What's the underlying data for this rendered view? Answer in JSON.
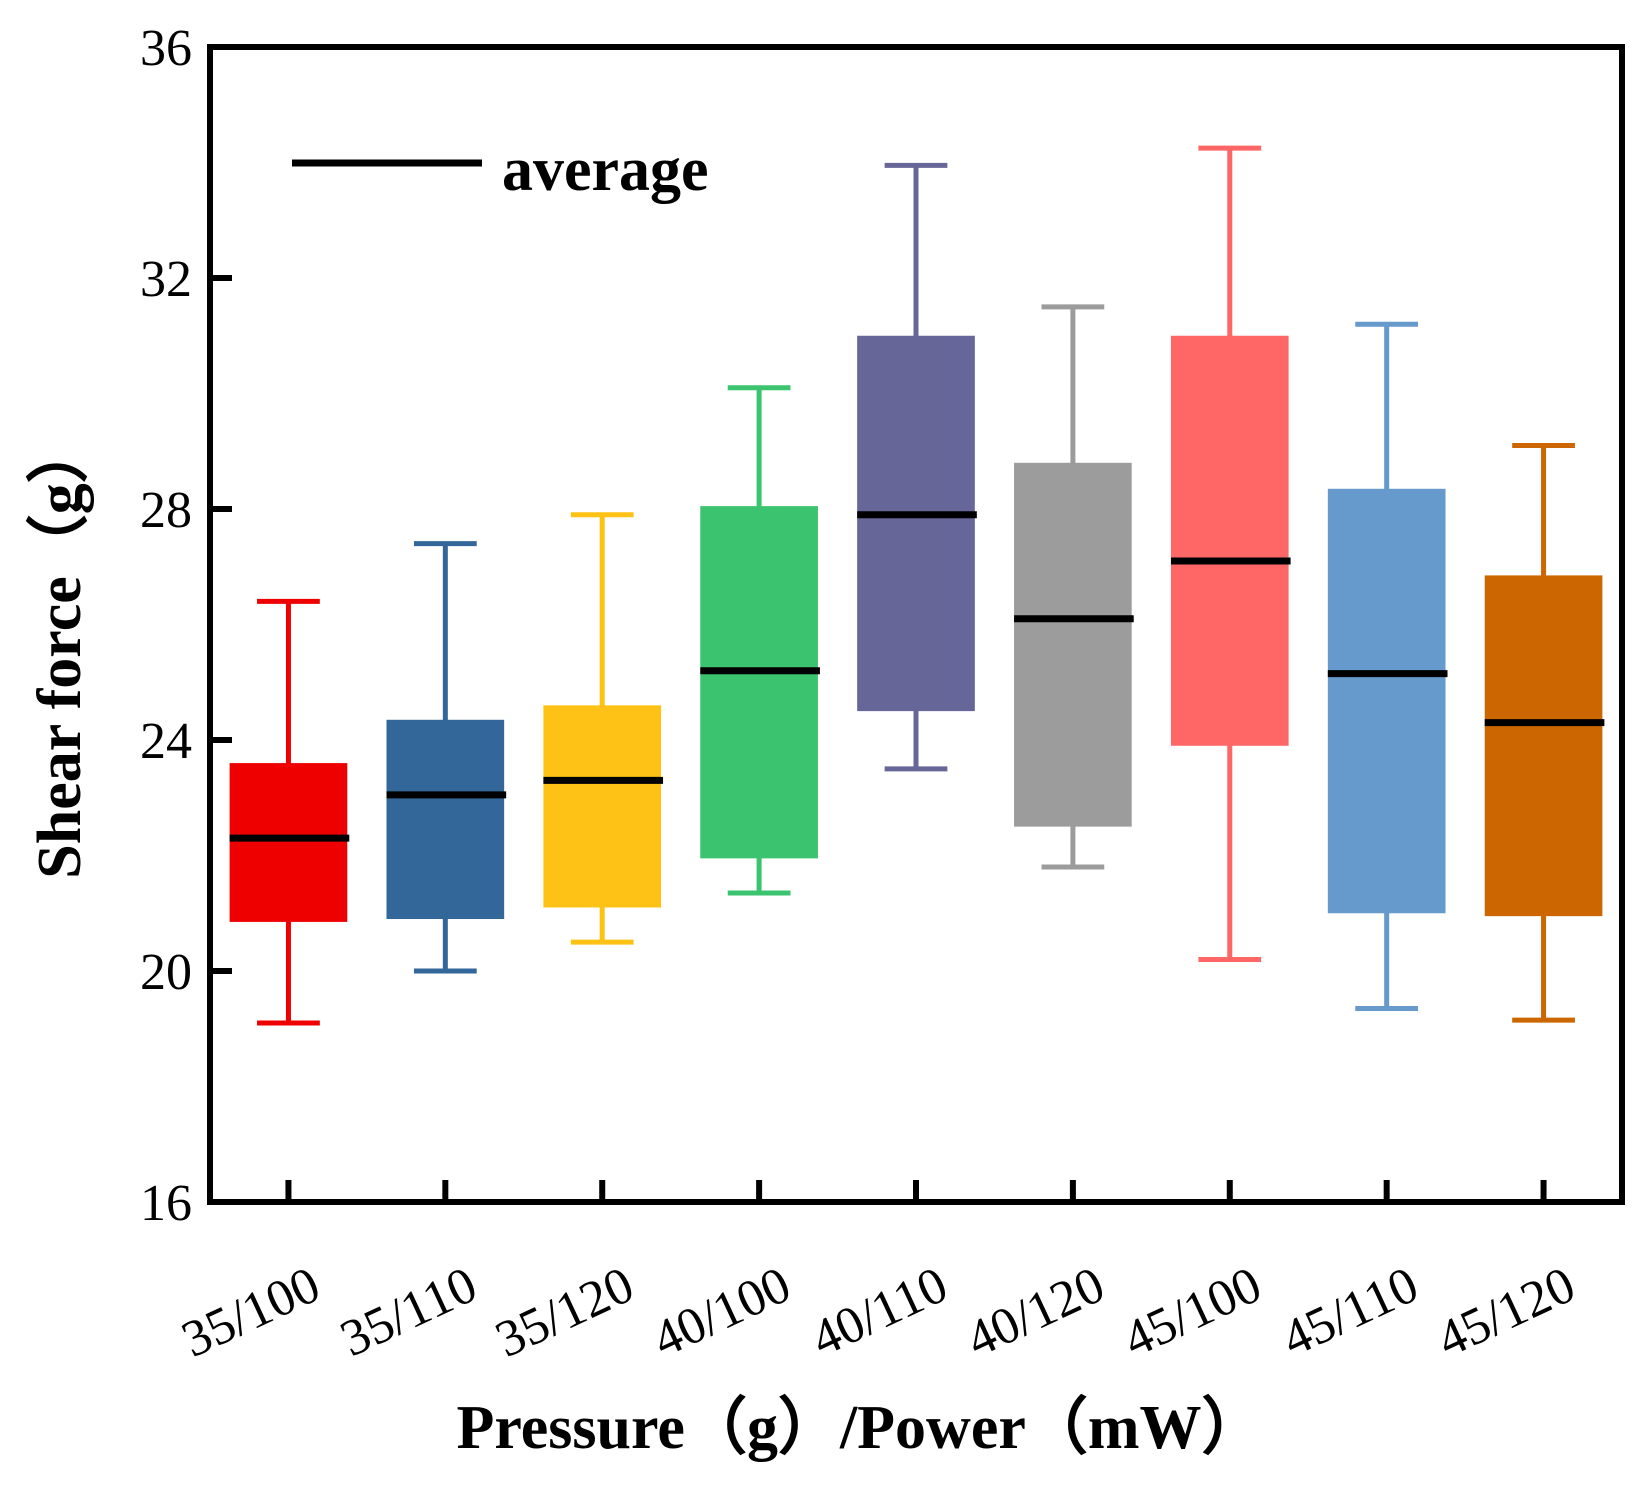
{
  "chart_data": {
    "type": "box",
    "title": "",
    "xlabel": "Pressure（g）/Power（mW）",
    "ylabel": "Shear force（g）",
    "ylim": [
      16,
      36
    ],
    "yticks": [
      "16",
      "20",
      "24",
      "28",
      "32",
      "36"
    ],
    "legend": {
      "label": "average",
      "placement": "top-left"
    },
    "categories": [
      "35/100",
      "35/110",
      "35/120",
      "40/100",
      "40/110",
      "40/120",
      "45/100",
      "45/110",
      "45/120"
    ],
    "colors": [
      "#EE0000",
      "#336699",
      "#FDC215",
      "#3CC370",
      "#666699",
      "#9C9C9C",
      "#FF6666",
      "#6699CC",
      "#CC6600"
    ],
    "series": [
      {
        "name": "35/100",
        "whisker_low": 19.1,
        "q1": 20.85,
        "average": 22.3,
        "q3": 23.6,
        "whisker_high": 26.4
      },
      {
        "name": "35/110",
        "whisker_low": 20.0,
        "q1": 20.9,
        "average": 23.05,
        "q3": 24.35,
        "whisker_high": 27.4
      },
      {
        "name": "35/120",
        "whisker_low": 20.5,
        "q1": 21.1,
        "average": 23.3,
        "q3": 24.6,
        "whisker_high": 27.9
      },
      {
        "name": "40/100",
        "whisker_low": 21.35,
        "q1": 21.95,
        "average": 25.2,
        "q3": 28.05,
        "whisker_high": 30.1
      },
      {
        "name": "40/110",
        "whisker_low": 23.5,
        "q1": 24.5,
        "average": 27.9,
        "q3": 31.0,
        "whisker_high": 33.95
      },
      {
        "name": "40/120",
        "whisker_low": 21.8,
        "q1": 22.5,
        "average": 26.1,
        "q3": 28.8,
        "whisker_high": 31.5
      },
      {
        "name": "45/100",
        "whisker_low": 20.2,
        "q1": 23.9,
        "average": 27.1,
        "q3": 31.0,
        "whisker_high": 34.25
      },
      {
        "name": "45/110",
        "whisker_low": 19.35,
        "q1": 21.0,
        "average": 25.15,
        "q3": 28.35,
        "whisker_high": 31.2
      },
      {
        "name": "45/120",
        "whisker_low": 19.15,
        "q1": 20.95,
        "average": 24.3,
        "q3": 26.85,
        "whisker_high": 29.1
      }
    ]
  }
}
